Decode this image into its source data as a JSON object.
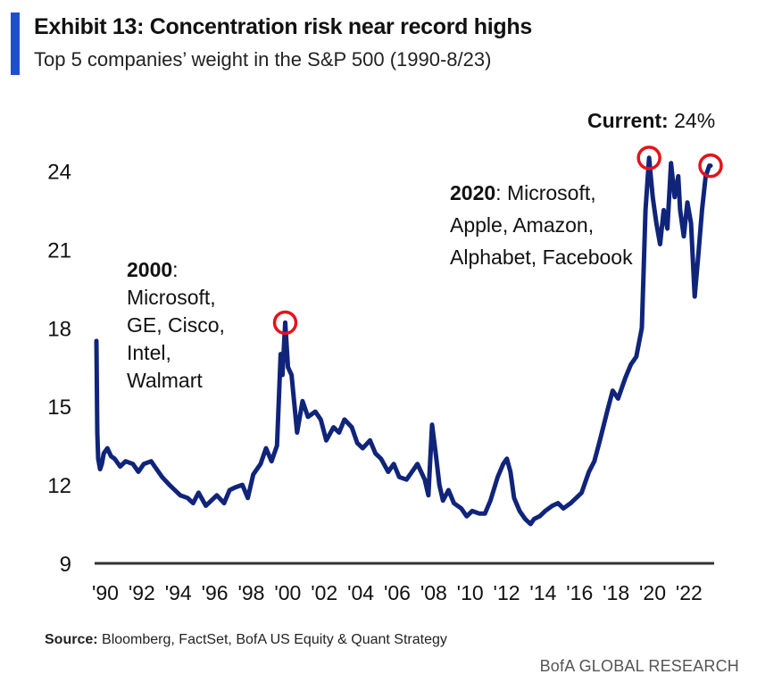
{
  "title": "Exhibit 13: Concentration risk near record highs",
  "subtitle": "Top 5 companies’ weight in the S&P 500 (1990-8/23)",
  "annotations": {
    "a2000": {
      "head": "2000",
      "colon": ":",
      "lines": [
        "Microsoft,",
        "GE, Cisco,",
        "Intel,",
        "Walmart"
      ]
    },
    "a2020": {
      "head": "2020",
      "rest": ": Microsoft,",
      "lines": [
        "Apple, Amazon,",
        "Alphabet, Facebook"
      ]
    },
    "current": {
      "head": "Current:",
      "value": "24%"
    }
  },
  "source": {
    "label": "Source:",
    "text": "Bloomberg, FactSet, BofA US Equity & Quant Strategy"
  },
  "brand": "BofA GLOBAL RESEARCH",
  "colors": {
    "line": "#10247a",
    "accent": "#1f4fd1",
    "circle": "#e3141b"
  },
  "chart_data": {
    "type": "line",
    "ylim": [
      9,
      25.5
    ],
    "xlim": [
      1990,
      2023.67
    ],
    "yticks": [
      9,
      12,
      15,
      18,
      21,
      24
    ],
    "xticks": [
      {
        "v": 1990,
        "label": "'90"
      },
      {
        "v": 1992,
        "label": "'92"
      },
      {
        "v": 1994,
        "label": "'94"
      },
      {
        "v": 1996,
        "label": "'96"
      },
      {
        "v": 1998,
        "label": "'98"
      },
      {
        "v": 2000,
        "label": "'00"
      },
      {
        "v": 2002,
        "label": "'02"
      },
      {
        "v": 2004,
        "label": "'04"
      },
      {
        "v": 2006,
        "label": "'06"
      },
      {
        "v": 2008,
        "label": "'08"
      },
      {
        "v": 2010,
        "label": "'10"
      },
      {
        "v": 2012,
        "label": "'12"
      },
      {
        "v": 2014,
        "label": "'14"
      },
      {
        "v": 2016,
        "label": "'16"
      },
      {
        "v": 2018,
        "label": "'18"
      },
      {
        "v": 2020,
        "label": "'20"
      },
      {
        "v": 2022,
        "label": "'22"
      }
    ],
    "x": [
      1990.0,
      1990.05,
      1990.1,
      1990.2,
      1990.3,
      1990.4,
      1990.6,
      1990.8,
      1991.0,
      1991.3,
      1991.6,
      1992.0,
      1992.3,
      1992.6,
      1993.0,
      1993.3,
      1993.6,
      1994.0,
      1994.3,
      1994.6,
      1995.0,
      1995.3,
      1995.6,
      1996.0,
      1996.3,
      1996.6,
      1997.0,
      1997.3,
      1997.6,
      1998.0,
      1998.3,
      1998.6,
      1999.0,
      1999.3,
      1999.6,
      1999.9,
      2000.1,
      2000.2,
      2000.35,
      2000.5,
      2000.7,
      2001.0,
      2001.3,
      2001.6,
      2002.0,
      2002.3,
      2002.6,
      2003.0,
      2003.3,
      2003.6,
      2004.0,
      2004.3,
      2004.6,
      2005.0,
      2005.3,
      2005.6,
      2006.0,
      2006.3,
      2006.6,
      2007.0,
      2007.3,
      2007.6,
      2008.0,
      2008.2,
      2008.4,
      2008.6,
      2008.8,
      2009.0,
      2009.3,
      2009.6,
      2010.0,
      2010.3,
      2010.6,
      2011.0,
      2011.3,
      2011.6,
      2012.0,
      2012.3,
      2012.5,
      2012.7,
      2012.9,
      2013.2,
      2013.5,
      2013.8,
      2014.0,
      2014.3,
      2014.6,
      2015.0,
      2015.3,
      2015.6,
      2016.0,
      2016.3,
      2016.6,
      2017.0,
      2017.3,
      2017.6,
      2018.0,
      2018.3,
      2018.6,
      2019.0,
      2019.3,
      2019.6,
      2019.9,
      2020.1,
      2020.3,
      2020.5,
      2020.7,
      2020.9,
      2021.1,
      2021.3,
      2021.5,
      2021.7,
      2021.9,
      2022.0,
      2022.2,
      2022.4,
      2022.6,
      2022.8,
      2023.0,
      2023.2,
      2023.4,
      2023.6,
      2023.67
    ],
    "y": [
      17.5,
      14.0,
      13.0,
      12.6,
      12.8,
      13.2,
      13.4,
      13.1,
      13.0,
      12.7,
      12.9,
      12.8,
      12.5,
      12.8,
      12.9,
      12.6,
      12.3,
      12.0,
      11.8,
      11.6,
      11.5,
      11.3,
      11.7,
      11.2,
      11.4,
      11.6,
      11.3,
      11.8,
      11.9,
      12.0,
      11.5,
      12.4,
      12.8,
      13.4,
      12.9,
      13.5,
      17.0,
      16.2,
      18.2,
      16.5,
      16.2,
      14.0,
      15.2,
      14.6,
      14.8,
      14.5,
      13.7,
      14.2,
      14.0,
      14.5,
      14.2,
      13.6,
      13.4,
      13.7,
      13.2,
      13.0,
      12.5,
      12.8,
      12.3,
      12.2,
      12.5,
      12.8,
      12.2,
      11.6,
      14.3,
      13.2,
      12.0,
      11.4,
      11.8,
      11.3,
      11.1,
      10.8,
      11.0,
      10.9,
      10.9,
      11.4,
      12.3,
      12.8,
      13.0,
      12.5,
      11.5,
      11.0,
      10.7,
      10.5,
      10.7,
      10.8,
      11.0,
      11.2,
      11.3,
      11.1,
      11.3,
      11.5,
      11.7,
      12.5,
      12.9,
      13.7,
      14.8,
      15.6,
      15.3,
      16.1,
      16.6,
      16.9,
      18.0,
      22.5,
      24.5,
      23.0,
      22.0,
      21.2,
      22.5,
      21.8,
      24.3,
      23.0,
      23.8,
      22.5,
      21.5,
      22.8,
      22.0,
      19.2,
      20.8,
      22.5,
      23.8,
      24.2,
      24.2
    ],
    "highlights": [
      {
        "x": 2000.35,
        "y": 18.2
      },
      {
        "x": 2020.3,
        "y": 24.5
      },
      {
        "x": 2023.67,
        "y": 24.2
      }
    ]
  }
}
